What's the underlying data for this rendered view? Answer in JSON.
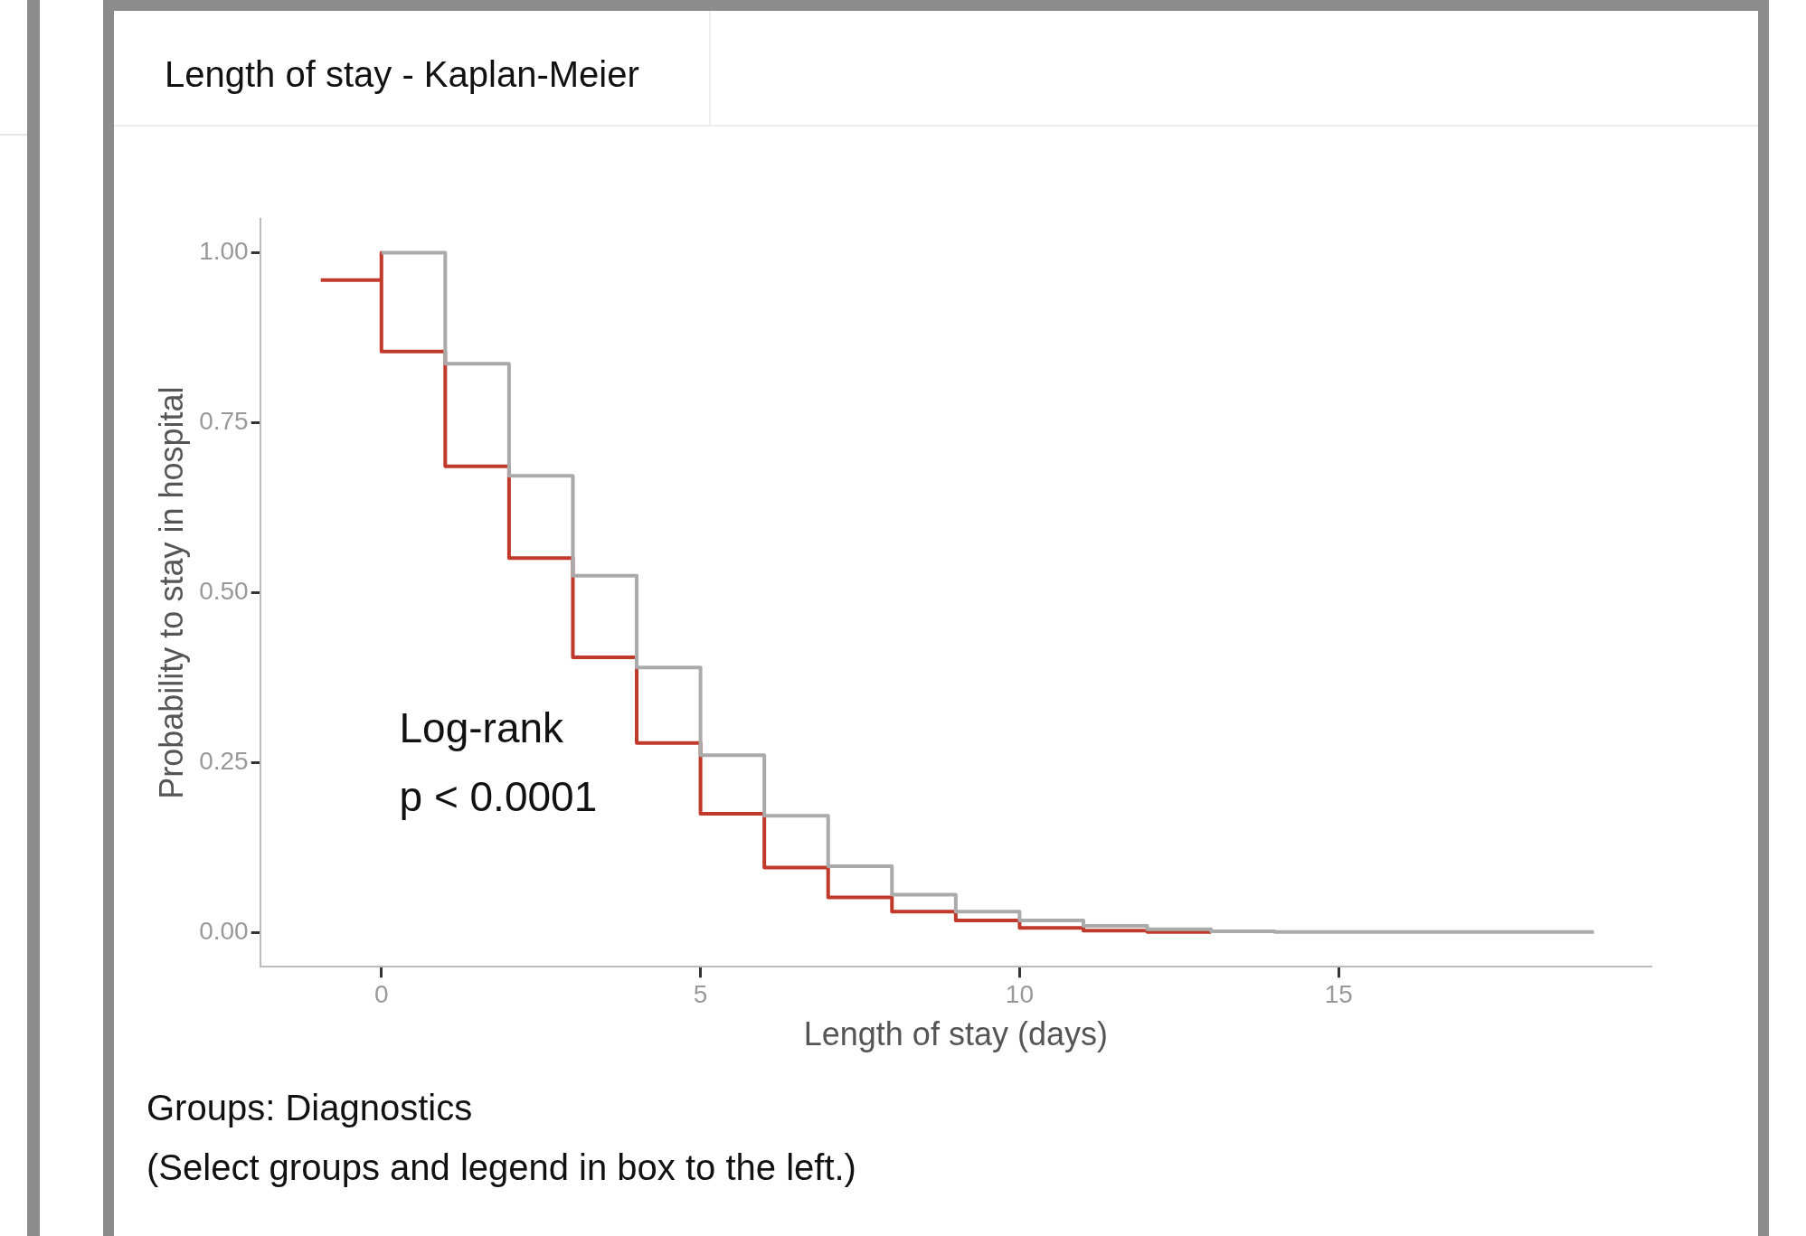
{
  "chart_data": {
    "type": "step",
    "title": "Length of stay - Kaplan-Meier",
    "xlabel": "Length of stay (days)",
    "ylabel": "Probability to stay in hospital",
    "series": [
      {
        "color": "#aaaaaa",
        "x": [
          0,
          1,
          2,
          3,
          4,
          5,
          6,
          7,
          8,
          9,
          10,
          11,
          12,
          13,
          14,
          19
        ],
        "values": [
          1.0,
          0.837,
          0.672,
          0.525,
          0.39,
          0.261,
          0.172,
          0.098,
          0.056,
          0.031,
          0.018,
          0.01,
          0.005,
          0.002,
          0.001,
          0.001
        ]
      },
      {
        "color": "#c0392b",
        "x": [
          -0.95,
          0,
          0,
          1,
          2,
          3,
          4,
          5,
          6,
          7,
          8,
          9,
          10,
          11,
          12,
          13
        ],
        "values": [
          0.96,
          1.0,
          0.855,
          0.686,
          0.551,
          0.405,
          0.279,
          0.175,
          0.096,
          0.052,
          0.031,
          0.018,
          0.007,
          0.003,
          0.001,
          0.001
        ]
      }
    ],
    "xlim": [
      -1.9,
      19.9
    ],
    "xticks": [
      0,
      5,
      10,
      15
    ],
    "ylim": [
      -0.05,
      1.05
    ],
    "yticks": [
      {
        "value": 0,
        "label": "0.00"
      },
      {
        "value": 0.25,
        "label": "0.25"
      },
      {
        "value": 0.5,
        "label": "0.50"
      },
      {
        "value": 0.75,
        "label": "0.75"
      },
      {
        "value": 1,
        "label": "1.00"
      }
    ],
    "grid": false,
    "legend": false,
    "annotations": [
      "Log-rank\np < 0.0001",
      "Groups: Diagnostics",
      "(Select groups and legend in box to the left.)"
    ]
  }
}
